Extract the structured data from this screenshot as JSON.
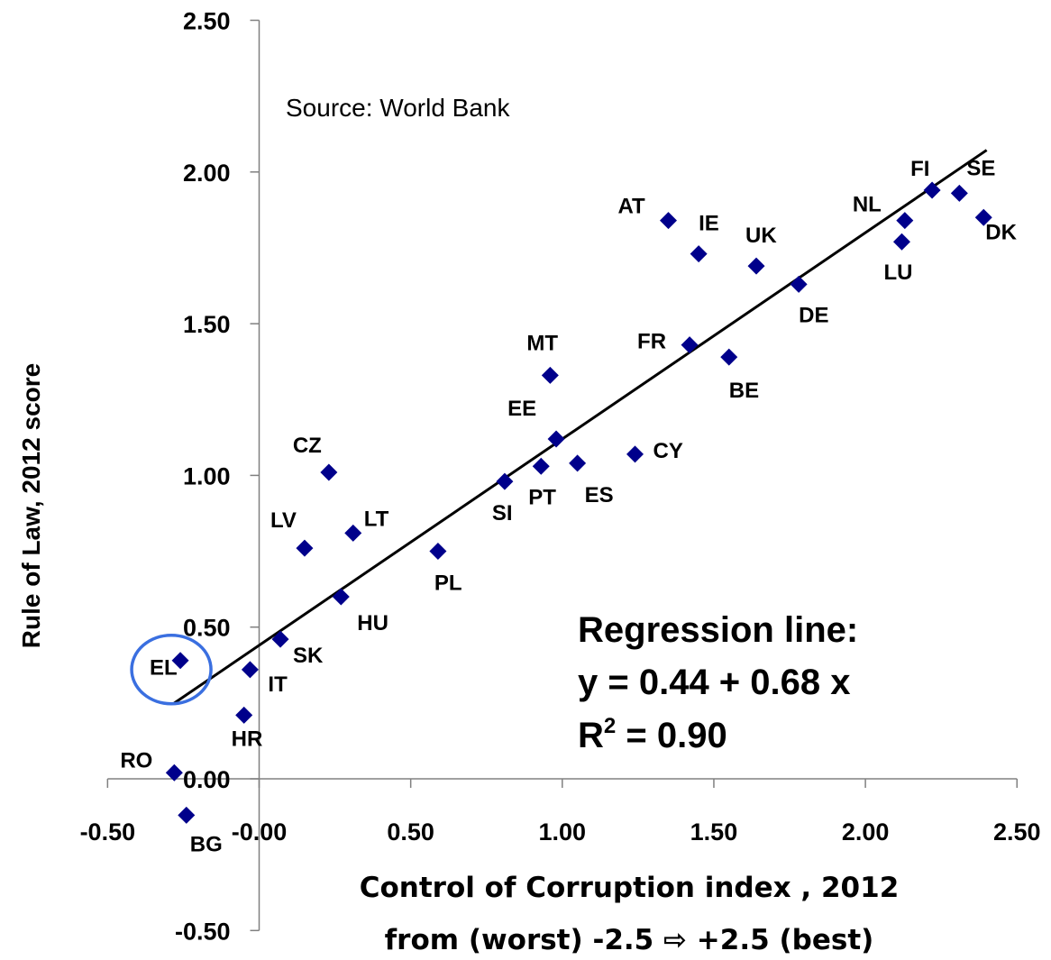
{
  "chart_data": {
    "type": "scatter",
    "source": "Source: World Bank",
    "xlabel_line1": "Control of Corruption  index , 2012",
    "xlabel_line2": "from (worst) -2.5 ⇨ +2.5 (best)",
    "ylabel": "Rule of Law, 2012 score",
    "xlim": [
      -0.5,
      2.5
    ],
    "ylim": [
      -0.5,
      2.5
    ],
    "x_ticks": [
      "-0.50",
      "-0.00",
      "0.50",
      "1.00",
      "1.50",
      "2.00",
      "2.50"
    ],
    "y_ticks": [
      "-0.50",
      "0.00",
      "0.50",
      "1.00",
      "1.50",
      "2.00",
      "2.50"
    ],
    "point_color": "#00008B",
    "points": [
      {
        "label": "DK",
        "x": 2.39,
        "y": 1.85
      },
      {
        "label": "SE",
        "x": 2.31,
        "y": 1.93
      },
      {
        "label": "FI",
        "x": 2.22,
        "y": 1.94
      },
      {
        "label": "NL",
        "x": 2.13,
        "y": 1.84
      },
      {
        "label": "LU",
        "x": 2.12,
        "y": 1.77
      },
      {
        "label": "DE",
        "x": 1.78,
        "y": 1.63
      },
      {
        "label": "UK",
        "x": 1.64,
        "y": 1.69
      },
      {
        "label": "BE",
        "x": 1.55,
        "y": 1.39
      },
      {
        "label": "IE",
        "x": 1.45,
        "y": 1.73
      },
      {
        "label": "FR",
        "x": 1.42,
        "y": 1.43
      },
      {
        "label": "AT",
        "x": 1.35,
        "y": 1.84
      },
      {
        "label": "CY",
        "x": 1.24,
        "y": 1.07
      },
      {
        "label": "ES",
        "x": 1.05,
        "y": 1.04
      },
      {
        "label": "EE",
        "x": 0.98,
        "y": 1.12
      },
      {
        "label": "MT",
        "x": 0.96,
        "y": 1.33
      },
      {
        "label": "PT",
        "x": 0.93,
        "y": 1.03
      },
      {
        "label": "SI",
        "x": 0.81,
        "y": 0.98
      },
      {
        "label": "PL",
        "x": 0.59,
        "y": 0.75
      },
      {
        "label": "LT",
        "x": 0.31,
        "y": 0.81
      },
      {
        "label": "HU",
        "x": 0.27,
        "y": 0.6
      },
      {
        "label": "CZ",
        "x": 0.23,
        "y": 1.01
      },
      {
        "label": "LV",
        "x": 0.15,
        "y": 0.76
      },
      {
        "label": "SK",
        "x": 0.07,
        "y": 0.46
      },
      {
        "label": "IT",
        "x": -0.03,
        "y": 0.36
      },
      {
        "label": "HR",
        "x": -0.05,
        "y": 0.21
      },
      {
        "label": "EL",
        "x": -0.26,
        "y": 0.39
      },
      {
        "label": "RO",
        "x": -0.28,
        "y": 0.02
      },
      {
        "label": "BG",
        "x": -0.24,
        "y": -0.12
      }
    ],
    "regression": {
      "title": "Regression line:",
      "equation": "y = 0.44 + 0.68 x",
      "r2_prefix": "R",
      "r2_sup": "2",
      "r2_value": " = 0.90",
      "intercept": 0.44,
      "slope": 0.68,
      "x_range": [
        -0.28,
        2.4
      ]
    },
    "highlight": {
      "label": "EL",
      "ring_color": "#3A6FE0"
    }
  }
}
